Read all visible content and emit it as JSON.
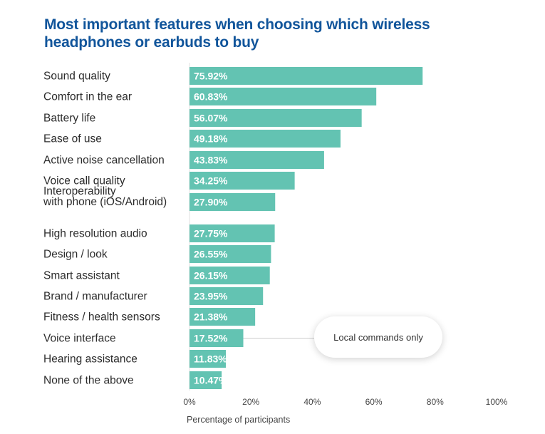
{
  "chart_data": {
    "type": "bar",
    "orientation": "horizontal",
    "title": "Most important features when choosing which wireless headphones or earbuds to buy",
    "xlabel": "Percentage of participants",
    "ylabel": "",
    "xlim": [
      0,
      100
    ],
    "grid": false,
    "bar_color": "#63c3b2",
    "title_color": "#11559b",
    "categories": [
      [
        "Sound quality"
      ],
      [
        "Comfort in the ear"
      ],
      [
        "Battery life"
      ],
      [
        "Ease of use"
      ],
      [
        "Active noise cancellation"
      ],
      [
        "Voice call quality"
      ],
      [
        "Interoperability",
        "with phone (iOS/Android)"
      ],
      [
        "High resolution audio"
      ],
      [
        "Design / look"
      ],
      [
        "Smart assistant"
      ],
      [
        "Brand / manufacturer"
      ],
      [
        "Fitness / health sensors"
      ],
      [
        "Voice interface"
      ],
      [
        "Hearing assistance"
      ],
      [
        "None of the above"
      ]
    ],
    "values": [
      75.92,
      60.83,
      56.07,
      49.18,
      43.83,
      34.25,
      27.9,
      27.75,
      26.55,
      26.15,
      23.95,
      21.38,
      17.52,
      11.83,
      10.47
    ],
    "value_labels": [
      "75.92%",
      "60.83%",
      "56.07%",
      "49.18%",
      "43.83%",
      "34.25%",
      "27.90%",
      "27.75%",
      "26.55%",
      "26.15%",
      "23.95%",
      "21.38%",
      "17.52%",
      "11.83%",
      "10.47%"
    ],
    "x_ticks": [
      0,
      20,
      40,
      60,
      80,
      100
    ],
    "x_tick_labels": [
      "0%",
      "20%",
      "40%",
      "60%",
      "80%",
      "100%"
    ],
    "annotations": [
      {
        "text": "Local commands only",
        "category": "Voice interface"
      }
    ]
  }
}
